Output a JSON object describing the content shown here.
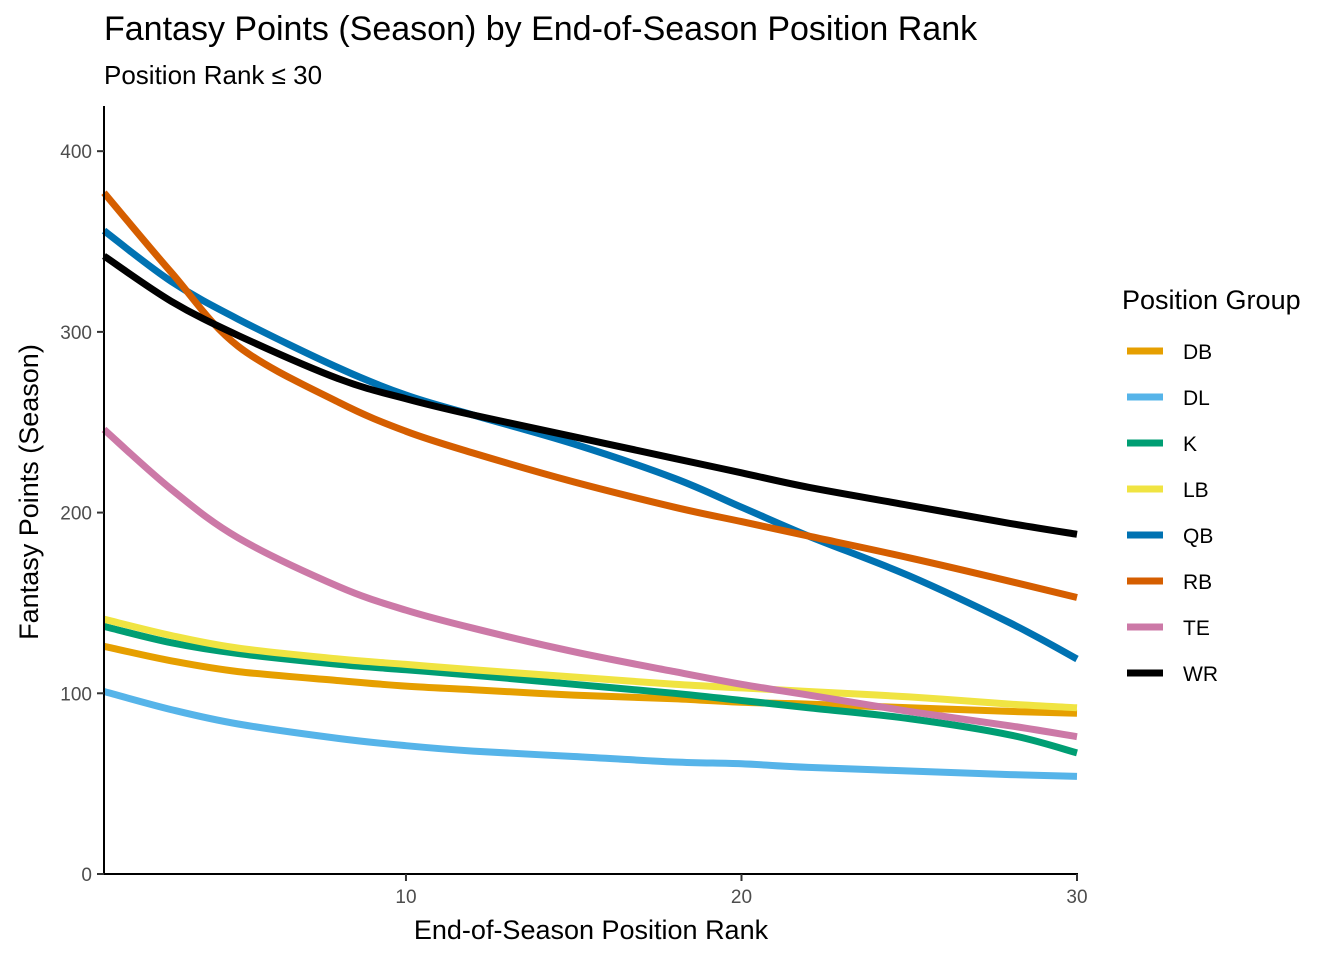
{
  "chart_data": {
    "type": "line",
    "title": "Fantasy Points (Season) by End-of-Season Position Rank",
    "subtitle": "Position Rank ≤ 30",
    "xlabel": "End-of-Season Position Rank",
    "ylabel": "Fantasy Points (Season)",
    "xlim": [
      1,
      30
    ],
    "ylim": [
      0,
      425
    ],
    "xticks": [
      10,
      20,
      30
    ],
    "yticks": [
      0,
      100,
      200,
      300,
      400
    ],
    "grid": false,
    "legend": {
      "title": "Position Group",
      "position": "right"
    },
    "x": [
      1,
      3,
      5,
      8,
      10,
      12,
      15,
      18,
      20,
      22,
      25,
      28,
      30
    ],
    "series": [
      {
        "name": "DB",
        "color": "#E69F00",
        "values": [
          126,
          118,
          112,
          107,
          104,
          102,
          99,
          97,
          95,
          94,
          92,
          90,
          89
        ]
      },
      {
        "name": "DL",
        "color": "#56B4E9",
        "values": [
          101,
          91,
          83,
          75,
          71,
          68,
          65,
          62,
          61,
          59,
          57,
          55,
          54
        ]
      },
      {
        "name": "K",
        "color": "#009E73",
        "values": [
          137,
          128,
          122,
          116,
          113,
          110,
          105,
          100,
          96,
          92,
          86,
          77,
          67
        ]
      },
      {
        "name": "LB",
        "color": "#F0E442",
        "values": [
          141,
          132,
          125,
          119,
          116,
          113,
          109,
          105,
          103,
          101,
          98,
          94,
          92
        ]
      },
      {
        "name": "QB",
        "color": "#0072B2",
        "values": [
          356,
          328,
          307,
          280,
          265,
          254,
          238,
          219,
          203,
          187,
          165,
          139,
          119
        ]
      },
      {
        "name": "RB",
        "color": "#D55E00",
        "values": [
          377,
          333,
          292,
          261,
          245,
          233,
          217,
          203,
          195,
          187,
          175,
          162,
          153
        ]
      },
      {
        "name": "TE",
        "color": "#CC79A7",
        "values": [
          246,
          213,
          186,
          159,
          146,
          136,
          123,
          112,
          105,
          99,
          90,
          82,
          76
        ]
      },
      {
        "name": "WR",
        "color": "#000000",
        "values": [
          342,
          317,
          298,
          274,
          263,
          254,
          242,
          230,
          222,
          214,
          204,
          194,
          188
        ]
      }
    ]
  }
}
